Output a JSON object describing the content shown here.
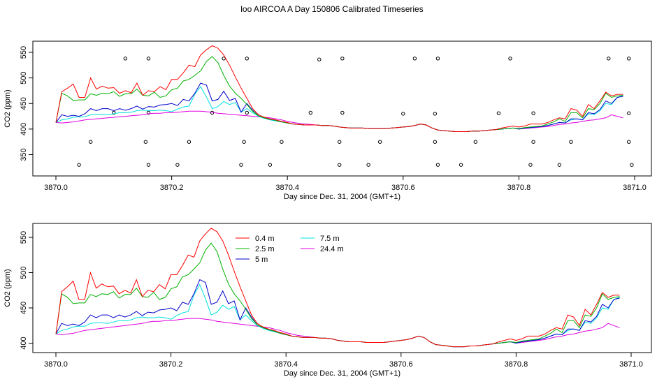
{
  "title": "loo AIRCOA A  Day 150806  Calibrated Timeseries",
  "chart_data": [
    {
      "type": "scatter",
      "xlabel": "Day since Dec. 31, 2004 (GMT+1)",
      "ylabel": "CO2 (ppm)",
      "xlim": [
        3869.97,
        3871.03
      ],
      "ylim": [
        320,
        570
      ],
      "xticks": [
        "3870.0",
        "3870.2",
        "3870.4",
        "3870.6",
        "3870.8",
        "3871.0"
      ],
      "yticks": [
        "350",
        "400",
        "450",
        "500",
        "550"
      ],
      "series": [
        {
          "color": "#ff0000",
          "ref": "s04"
        },
        {
          "color": "#00b000",
          "ref": "s25"
        },
        {
          "color": "#0000cc",
          "ref": "s5"
        },
        {
          "color": "#00e0e0",
          "ref": "s75"
        },
        {
          "color": "#e000e0",
          "ref": "s244"
        }
      ],
      "points": {
        "x": [
          3870.04,
          3870.06,
          3870.1,
          3870.12,
          3870.16,
          3870.155,
          3870.16,
          3870.16,
          3870.21,
          3870.23,
          3870.27,
          3870.29,
          3870.32,
          3870.325,
          3870.33,
          3870.33,
          3870.37,
          3870.39,
          3870.44,
          3870.455,
          3870.49,
          3870.49,
          3870.495,
          3870.495,
          3870.54,
          3870.56,
          3870.6,
          3870.62,
          3870.655,
          3870.655,
          3870.66,
          3870.66,
          3870.7,
          3870.725,
          3870.765,
          3870.785,
          3870.82,
          3870.825,
          3870.825,
          3870.87,
          3870.89,
          3870.955,
          3870.99,
          3870.99,
          3870.99,
          3870.995
        ],
        "y": [
          330,
          375,
          432,
          538,
          330,
          375,
          432,
          538,
          330,
          375,
          432,
          538,
          330,
          375,
          432,
          538,
          330,
          375,
          432,
          536,
          330,
          375,
          432,
          538,
          330,
          375,
          430,
          538,
          375,
          430,
          330,
          538,
          330,
          375,
          431,
          538,
          330,
          375,
          431,
          330,
          375,
          538,
          538,
          431,
          375,
          330
        ]
      }
    },
    {
      "type": "line",
      "xlabel": "Day since Dec. 31, 2004 (GMT+1)",
      "ylabel": "CO2 (ppm)",
      "xlim": [
        3869.97,
        3871.03
      ],
      "ylim": [
        390,
        568
      ],
      "xticks": [
        "3870.0",
        "3870.2",
        "3870.4",
        "3870.6",
        "3870.8",
        "3871.0"
      ],
      "yticks": [
        "400",
        "450",
        "500",
        "550"
      ],
      "legend_position": "top-center",
      "x": [
        3870.0,
        3870.01,
        3870.02,
        3870.03,
        3870.04,
        3870.05,
        3870.06,
        3870.07,
        3870.08,
        3870.09,
        3870.1,
        3870.11,
        3870.12,
        3870.13,
        3870.14,
        3870.15,
        3870.16,
        3870.17,
        3870.18,
        3870.19,
        3870.2,
        3870.21,
        3870.22,
        3870.23,
        3870.24,
        3870.25,
        3870.26,
        3870.27,
        3870.28,
        3870.29,
        3870.3,
        3870.31,
        3870.32,
        3870.33,
        3870.34,
        3870.35,
        3870.36,
        3870.37,
        3870.38,
        3870.39,
        3870.4,
        3870.41,
        3870.42,
        3870.43,
        3870.44,
        3870.45,
        3870.46,
        3870.47,
        3870.48,
        3870.49,
        3870.5,
        3870.51,
        3870.52,
        3870.53,
        3870.54,
        3870.55,
        3870.56,
        3870.57,
        3870.58,
        3870.59,
        3870.6,
        3870.61,
        3870.62,
        3870.63,
        3870.64,
        3870.65,
        3870.66,
        3870.67,
        3870.68,
        3870.69,
        3870.7,
        3870.71,
        3870.72,
        3870.73,
        3870.74,
        3870.75,
        3870.76,
        3870.77,
        3870.78,
        3870.79,
        3870.8,
        3870.81,
        3870.82,
        3870.83,
        3870.84,
        3870.85,
        3870.86,
        3870.87,
        3870.88,
        3870.89,
        3870.9,
        3870.91,
        3870.92,
        3870.93,
        3870.94,
        3870.95,
        3870.96,
        3870.97,
        3870.98
      ],
      "series": [
        {
          "name": "0.4 m",
          "key": "s04",
          "color": "#ff0000",
          "values": [
            413,
            473,
            480,
            488,
            462,
            462,
            500,
            478,
            484,
            480,
            481,
            470,
            475,
            471,
            490,
            466,
            475,
            473,
            483,
            477,
            497,
            497,
            510,
            525,
            522,
            545,
            555,
            563,
            558,
            545,
            525,
            502,
            480,
            460,
            440,
            428,
            423,
            420,
            418,
            415,
            413,
            410,
            409,
            408,
            408,
            408,
            407,
            407,
            406,
            404,
            403,
            402,
            402,
            402,
            401,
            401,
            401,
            401,
            402,
            403,
            404,
            405,
            407,
            410,
            408,
            402,
            398,
            397,
            396,
            395,
            395,
            395,
            396,
            396,
            397,
            398,
            399,
            402,
            404,
            406,
            404,
            406,
            410,
            410,
            410,
            413,
            418,
            422,
            420,
            440,
            437,
            425,
            448,
            440,
            455,
            472,
            465,
            468,
            468
          ]
        },
        {
          "name": "2.5 m",
          "key": "s25",
          "color": "#00b000",
          "values": [
            413,
            470,
            465,
            456,
            457,
            457,
            469,
            466,
            470,
            469,
            473,
            464,
            469,
            469,
            478,
            466,
            465,
            472,
            462,
            465,
            477,
            480,
            494,
            497,
            505,
            514,
            532,
            542,
            530,
            505,
            484,
            470,
            460,
            448,
            435,
            426,
            422,
            419,
            417,
            414,
            412,
            410,
            409,
            408,
            408,
            408,
            407,
            407,
            406,
            404,
            403,
            402,
            402,
            402,
            401,
            401,
            401,
            401,
            402,
            403,
            404,
            405,
            407,
            410,
            408,
            402,
            398,
            397,
            396,
            395,
            395,
            395,
            396,
            396,
            397,
            398,
            399,
            400,
            401,
            402,
            401,
            403,
            404,
            405,
            406,
            410,
            414,
            420,
            415,
            432,
            432,
            422,
            440,
            438,
            450,
            470,
            462,
            465,
            466
          ]
        },
        {
          "name": "5 m",
          "key": "s5",
          "color": "#0000cc",
          "values": [
            413,
            428,
            425,
            427,
            425,
            430,
            440,
            436,
            440,
            440,
            436,
            440,
            437,
            440,
            445,
            439,
            444,
            443,
            447,
            448,
            450,
            446,
            458,
            455,
            470,
            490,
            486,
            455,
            458,
            474,
            456,
            460,
            433,
            450,
            437,
            426,
            422,
            419,
            417,
            414,
            412,
            410,
            409,
            408,
            408,
            408,
            407,
            407,
            406,
            404,
            403,
            402,
            402,
            402,
            401,
            401,
            401,
            401,
            402,
            403,
            404,
            405,
            407,
            410,
            408,
            402,
            398,
            397,
            396,
            395,
            395,
            395,
            396,
            396,
            397,
            398,
            399,
            400,
            401,
            402,
            400,
            402,
            403,
            404,
            405,
            407,
            410,
            413,
            412,
            420,
            420,
            418,
            432,
            430,
            438,
            455,
            450,
            462,
            464
          ]
        },
        {
          "name": "7.5 m",
          "key": "s75",
          "color": "#00e0e0",
          "values": [
            413,
            418,
            420,
            423,
            424,
            424,
            428,
            429,
            429,
            428,
            430,
            432,
            432,
            433,
            436,
            437,
            436,
            436,
            437,
            436,
            434,
            439,
            443,
            445,
            468,
            483,
            463,
            440,
            444,
            454,
            448,
            452,
            433,
            440,
            432,
            425,
            421,
            418,
            416,
            414,
            412,
            410,
            409,
            408,
            408,
            408,
            407,
            407,
            406,
            404,
            403,
            402,
            402,
            402,
            401,
            401,
            401,
            401,
            402,
            403,
            404,
            405,
            407,
            410,
            408,
            402,
            398,
            397,
            396,
            395,
            395,
            395,
            396,
            396,
            397,
            398,
            399,
            400,
            401,
            402,
            400,
            402,
            403,
            404,
            405,
            407,
            410,
            413,
            412,
            418,
            420,
            418,
            430,
            428,
            436,
            450,
            448,
            462,
            465
          ]
        },
        {
          "name": "24.4 m",
          "key": "s244",
          "color": "#e000e0",
          "values": [
            413,
            412,
            413,
            414,
            416,
            418,
            419,
            420,
            421,
            422,
            423,
            424,
            425,
            426,
            427,
            428,
            430,
            431,
            431,
            432,
            432,
            433,
            434,
            435,
            435,
            435,
            434,
            433,
            431,
            430,
            429,
            428,
            427,
            426,
            425,
            424,
            423,
            422,
            420,
            418,
            415,
            413,
            411,
            410,
            409,
            408,
            407,
            407,
            406,
            404,
            403,
            402,
            402,
            402,
            401,
            401,
            401,
            401,
            402,
            403,
            404,
            405,
            407,
            410,
            408,
            402,
            398,
            397,
            396,
            395,
            395,
            395,
            396,
            396,
            397,
            398,
            399,
            400,
            401,
            402,
            400,
            401,
            402,
            403,
            404,
            405,
            407,
            409,
            410,
            412,
            413,
            415,
            417,
            418,
            420,
            422,
            428,
            425,
            422
          ]
        }
      ]
    }
  ]
}
